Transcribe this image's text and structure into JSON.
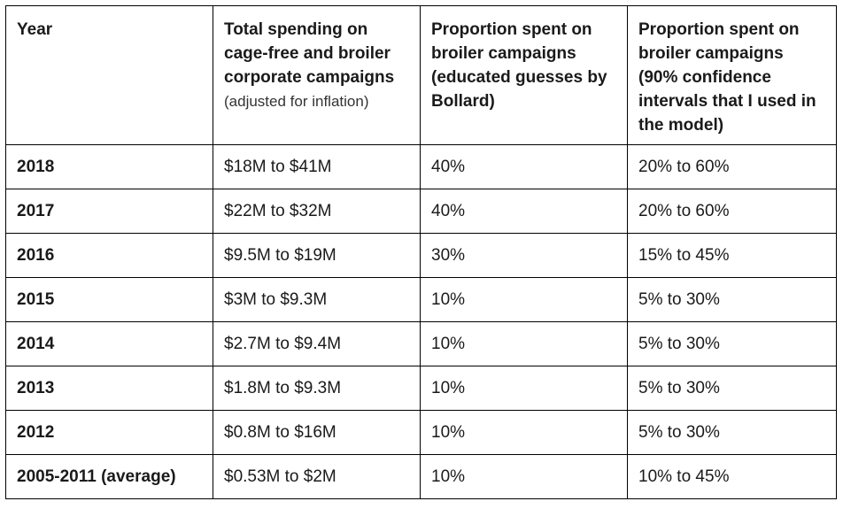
{
  "table": {
    "headers": {
      "year": "Year",
      "total_spending": "Total spending on cage-free and broiler corporate campaigns",
      "total_spending_note": "(adjusted for inflation)",
      "proportion_guess": "Proportion spent on broiler campaigns (educated guesses by Bollard)",
      "proportion_ci": "Proportion spent on broiler campaigns (90% confidence intervals that I used in the model)"
    },
    "rows": [
      {
        "year": "2018",
        "spending": "$18M to $41M",
        "proportion": "40%",
        "interval": "20% to 60%"
      },
      {
        "year": "2017",
        "spending": "$22M to $32M",
        "proportion": "40%",
        "interval": "20% to 60%"
      },
      {
        "year": "2016",
        "spending": "$9.5M to $19M",
        "proportion": "30%",
        "interval": "15% to 45%"
      },
      {
        "year": "2015",
        "spending": "$3M to $9.3M",
        "proportion": "10%",
        "interval": "5% to 30%"
      },
      {
        "year": "2014",
        "spending": "$2.7M to $9.4M",
        "proportion": "10%",
        "interval": "5% to 30%"
      },
      {
        "year": "2013",
        "spending": "$1.8M to $9.3M",
        "proportion": "10%",
        "interval": "5% to 30%"
      },
      {
        "year": "2012",
        "spending": "$0.8M to $16M",
        "proportion": "10%",
        "interval": "5% to 30%"
      },
      {
        "year": "2005-2011 (average)",
        "spending": "$0.53M to $2M",
        "proportion": "10%",
        "interval": "10% to 45%"
      }
    ]
  }
}
